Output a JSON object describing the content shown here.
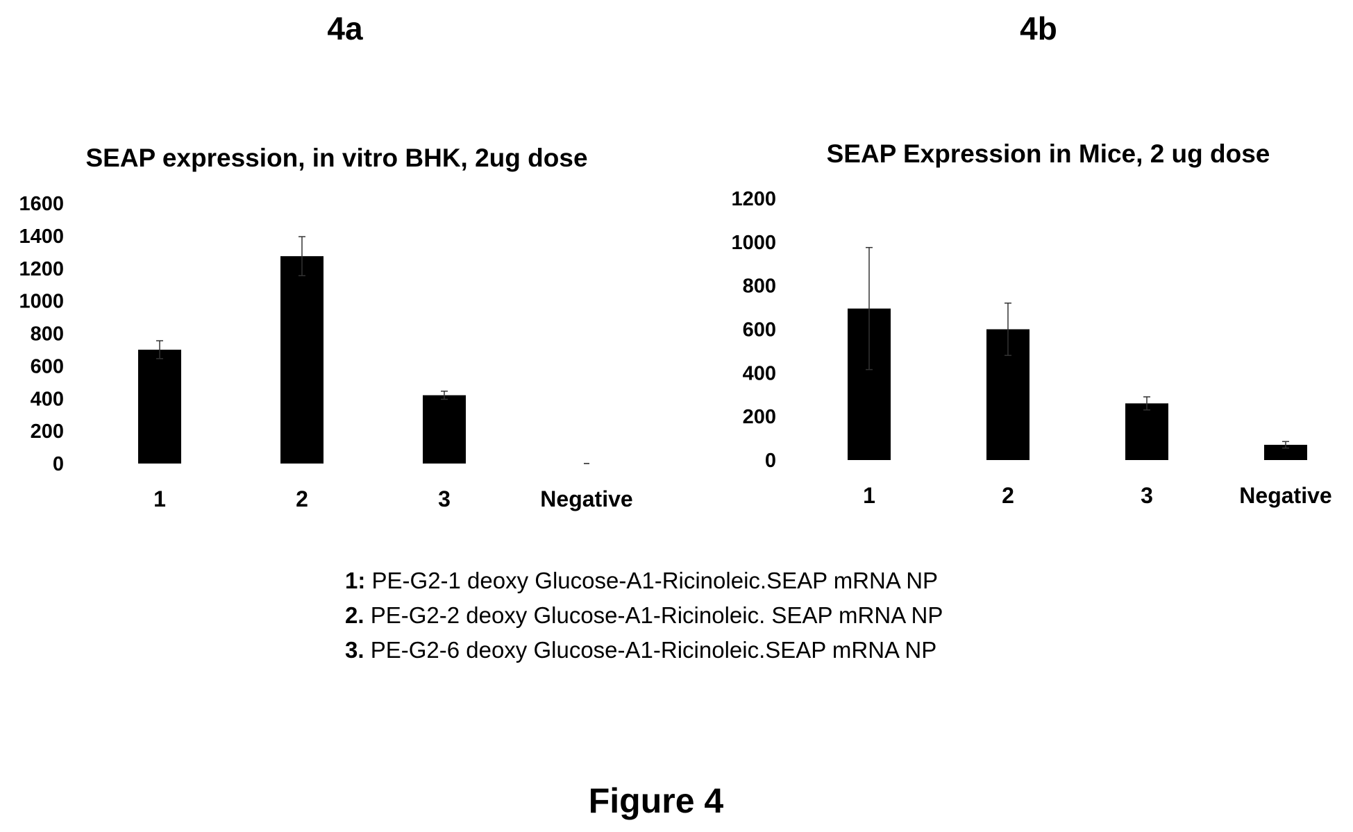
{
  "panels": {
    "a": "4a",
    "b": "4b"
  },
  "chart_data": [
    {
      "type": "bar",
      "title": "SEAP expression, in vitro BHK, 2ug dose",
      "categories": [
        "1",
        "2",
        "3",
        "Negative"
      ],
      "values": [
        700,
        1275,
        420,
        0
      ],
      "errors": [
        55,
        120,
        25,
        0
      ],
      "ylim": [
        0,
        1600
      ],
      "yticks": [
        0,
        200,
        400,
        600,
        800,
        1000,
        1200,
        1400,
        1600
      ],
      "xlabel": "",
      "ylabel": "",
      "grid": false,
      "bar_color": "#000000"
    },
    {
      "type": "bar",
      "title": "SEAP Expression in Mice, 2 ug dose",
      "categories": [
        "1",
        "2",
        "3",
        "Negative"
      ],
      "values": [
        695,
        600,
        260,
        70
      ],
      "errors": [
        280,
        120,
        30,
        15
      ],
      "ylim": [
        0,
        1200
      ],
      "yticks": [
        0,
        200,
        400,
        600,
        800,
        1000,
        1200
      ],
      "xlabel": "",
      "ylabel": "",
      "grid": false,
      "bar_color": "#000000"
    }
  ],
  "legend": [
    {
      "num": "1:",
      "text": "PE-G2-1 deoxy Glucose-A1-Ricinoleic.SEAP mRNA NP"
    },
    {
      "num": "2.",
      "text": "PE-G2-2 deoxy Glucose-A1-Ricinoleic. SEAP mRNA NP"
    },
    {
      "num": "3.",
      "text": "PE-G2-6 deoxy Glucose-A1-Ricinoleic.SEAP mRNA NP"
    }
  ],
  "caption": "Figure 4"
}
